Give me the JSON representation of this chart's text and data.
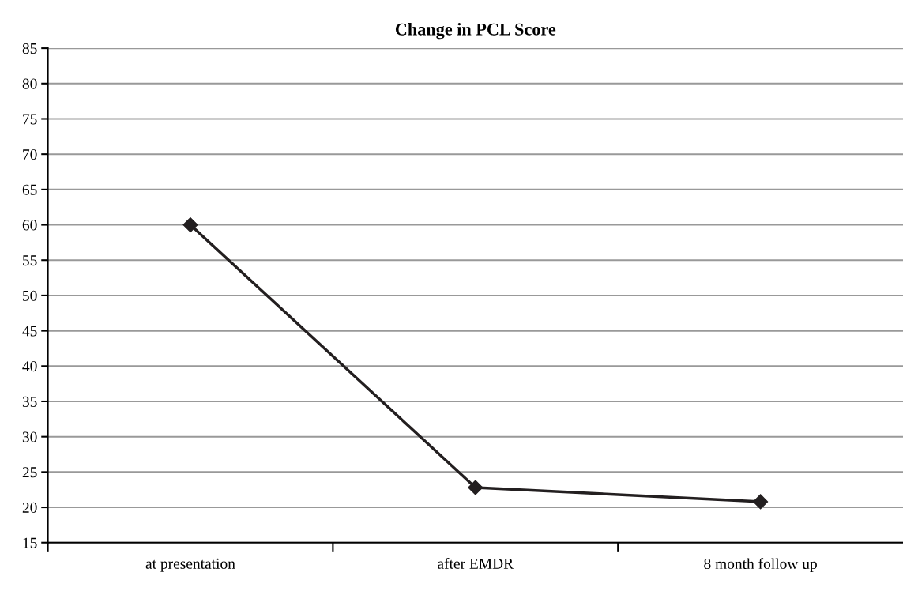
{
  "chart_data": {
    "type": "line",
    "title": "Change in PCL Score",
    "categories": [
      "at presentation",
      "after EMDR",
      "8 month follow up"
    ],
    "series": [
      {
        "color": "#231f20",
        "values": [
          60,
          22.8,
          20.8
        ]
      }
    ],
    "ylim": [
      15,
      85
    ],
    "yticks": [
      15,
      20,
      25,
      30,
      35,
      40,
      45,
      50,
      55,
      60,
      65,
      70,
      75,
      80,
      85
    ],
    "grid": "y",
    "marker": "diamond",
    "line_style": "solid"
  }
}
